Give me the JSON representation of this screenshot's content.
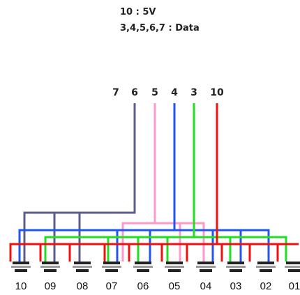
{
  "legend": {
    "line1": "10 : 5V",
    "line2": "3,4,5,6,7 : Data"
  },
  "pins": [
    {
      "label": "7",
      "color": "#000000"
    },
    {
      "label": "6",
      "color": "#5c5c8a"
    },
    {
      "label": "5",
      "color": "#ff99cc"
    },
    {
      "label": "4",
      "color": "#2255ee"
    },
    {
      "label": "3",
      "color": "#22dd22"
    },
    {
      "label": "10",
      "color": "#ee1111"
    }
  ],
  "devices": [
    "10",
    "09",
    "08",
    "07",
    "06",
    "05",
    "04",
    "03",
    "02",
    "01"
  ],
  "colors": {
    "v5": "#ee1111",
    "data3": "#22dd22",
    "data4": "#2255ee",
    "data5": "#ff99cc",
    "data6": "#5c5c8a",
    "connector": "#222222"
  }
}
